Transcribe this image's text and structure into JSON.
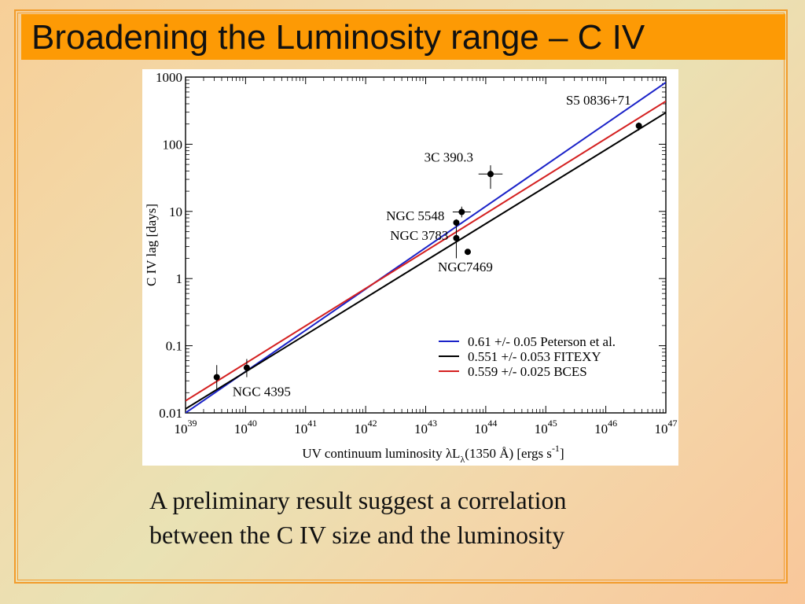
{
  "slide": {
    "title": "Broadening the Luminosity range – C IV",
    "caption_lines": [
      "A preliminary result suggest a correlation",
      "between the C IV size and the luminosity"
    ]
  },
  "chart_data": {
    "type": "scatter",
    "title": "",
    "xlabel": {
      "main": "UV continuum luminosity λL",
      "sub": "λ",
      "rest": "(1350 Å)  [ergs s",
      "sup": "-1",
      "tail": "]"
    },
    "ylabel": "C IV lag [days]",
    "xscale": "log",
    "yscale": "log",
    "xlim_exp": [
      39,
      47
    ],
    "ylim_exp": [
      -2,
      3
    ],
    "x_tick_exponents": [
      39,
      40,
      41,
      42,
      43,
      44,
      45,
      46,
      47
    ],
    "x_tick_base": "10",
    "y_tick_labels": [
      {
        "exp": -2,
        "label": "0.01"
      },
      {
        "exp": -1,
        "label": "0.1"
      },
      {
        "exp": 0,
        "label": "1"
      },
      {
        "exp": 1,
        "label": "10"
      },
      {
        "exp": 2,
        "label": "100"
      },
      {
        "exp": 3,
        "label": "1000"
      }
    ],
    "grid": false,
    "legend_position": "bottom-right",
    "points": [
      {
        "name": "NGC 4395",
        "log_x": 39.52,
        "y": 0.034,
        "xerr_dex": 0.0,
        "yerr_dex": [
          0.18,
          0.18
        ]
      },
      {
        "name": "",
        "log_x": 40.02,
        "y": 0.047,
        "xerr_dex": 0.0,
        "yerr_dex": [
          0.14,
          0.13
        ]
      },
      {
        "name": "NGC 3783",
        "log_x": 43.51,
        "y": 4.0,
        "xerr_dex": 0.03,
        "yerr_dex": [
          0.3,
          0.2
        ]
      },
      {
        "name": "NGC 5548",
        "log_x": 43.51,
        "y": 6.8,
        "xerr_dex": 0.0,
        "yerr_dex": [
          0.05,
          0.05
        ]
      },
      {
        "name": "",
        "log_x": 43.6,
        "y": 9.8,
        "xerr_dex": 0.15,
        "yerr_dex": [
          0.08,
          0.08
        ]
      },
      {
        "name": "NGC7469",
        "log_x": 43.7,
        "y": 2.5,
        "xerr_dex": 0.05,
        "yerr_dex": [
          0.04,
          0.04
        ]
      },
      {
        "name": "3C 390.3",
        "log_x": 44.08,
        "y": 36.0,
        "xerr_dex": 0.2,
        "yerr_dex": [
          0.22,
          0.13
        ]
      },
      {
        "name": "S5 0836+71",
        "log_x": 46.55,
        "y": 188.0,
        "xerr_dex": 0.0,
        "yerr_dex": [
          0.07,
          0.05
        ]
      }
    ],
    "fits": [
      {
        "name": "0.61 +/- 0.05 Peterson et al.",
        "color": "#1a22c8",
        "log_x": [
          39.0,
          47.0
        ],
        "log_y": [
          -2.0,
          2.92
        ]
      },
      {
        "name": "0.551 +/- 0.053 FITEXY",
        "color": "#000000",
        "log_x": [
          39.0,
          47.0
        ],
        "log_y": [
          -1.94,
          2.47
        ]
      },
      {
        "name": "0.559 +/- 0.025 BCES",
        "color": "#d42020",
        "log_x": [
          39.0,
          47.0
        ],
        "log_y": [
          -1.82,
          2.64
        ]
      }
    ],
    "point_color": "#000000"
  }
}
